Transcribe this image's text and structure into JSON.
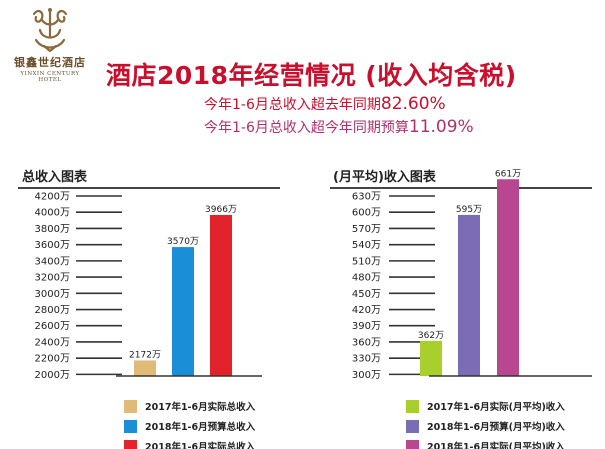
{
  "logo": {
    "name_cn": "银鑫世纪酒店",
    "name_en": "YINXIN CENTURY HOTEL"
  },
  "header": {
    "title": "酒店2018年经营情况 (收入均含税)",
    "line1_text": "今年1-6月总收入超去年同期",
    "line1_value": "82.60%",
    "line2_text": "今年1-6月总收入超今年同期预算",
    "line2_value": "11.09%"
  },
  "colors": {
    "title_red": "#c8102e",
    "left_2017": "#e0bb78",
    "left_budget": "#1a8fd8",
    "left_2018": "#e2232b",
    "right_2017": "#a8cf2c",
    "right_budget": "#7b6cb5",
    "right_2018": "#b8478f"
  },
  "chart_data": [
    {
      "type": "bar",
      "title": "总收入图表",
      "categories": [
        "2017年1-6月实际总收入",
        "2018年1-6月预算总收入",
        "2018年1-6月实际总收入"
      ],
      "values": [
        2172,
        3570,
        3966
      ],
      "value_labels": [
        "2172万",
        "3570万",
        "3966万"
      ],
      "yticks": [
        "2000万",
        "2200万",
        "2400万",
        "2600万",
        "2800万",
        "3000万",
        "3200万",
        "3400万",
        "3600万",
        "3800万",
        "4000万",
        "4200万"
      ],
      "ytick_values": [
        2000,
        2200,
        2400,
        2600,
        2800,
        3000,
        3200,
        3400,
        3600,
        3800,
        4000,
        4200
      ],
      "ylim": [
        1980,
        4200
      ],
      "colors": [
        "#e0bb78",
        "#1a8fd8",
        "#e2232b"
      ],
      "legend": [
        "2017年1-6月实际总收入",
        "2018年1-6月预算总收入",
        "2018年1-6月实际总收入"
      ],
      "legend_position": "bottom"
    },
    {
      "type": "bar",
      "title": "(月平均)收入图表",
      "categories": [
        "2017年1-6月实际(月平均)收入",
        "2018年1-6月预算(月平均)收入",
        "2018年1-6月实际(月平均)收入"
      ],
      "values": [
        362,
        595,
        661
      ],
      "value_labels": [
        "362万",
        "595万",
        "661万"
      ],
      "yticks": [
        "300万",
        "330万",
        "360万",
        "390万",
        "420万",
        "450万",
        "480万",
        "510万",
        "540万",
        "570万",
        "600万",
        "630万"
      ],
      "ytick_values": [
        300,
        330,
        360,
        390,
        420,
        450,
        480,
        510,
        540,
        570,
        600,
        630
      ],
      "ylim": [
        297,
        630
      ],
      "colors": [
        "#a8cf2c",
        "#7b6cb5",
        "#b8478f"
      ],
      "legend": [
        "2017年1-6月实际(月平均)收入",
        "2018年1-6月预算(月平均)收入",
        "2018年1-6月实际(月平均)收入"
      ],
      "legend_position": "bottom"
    }
  ]
}
